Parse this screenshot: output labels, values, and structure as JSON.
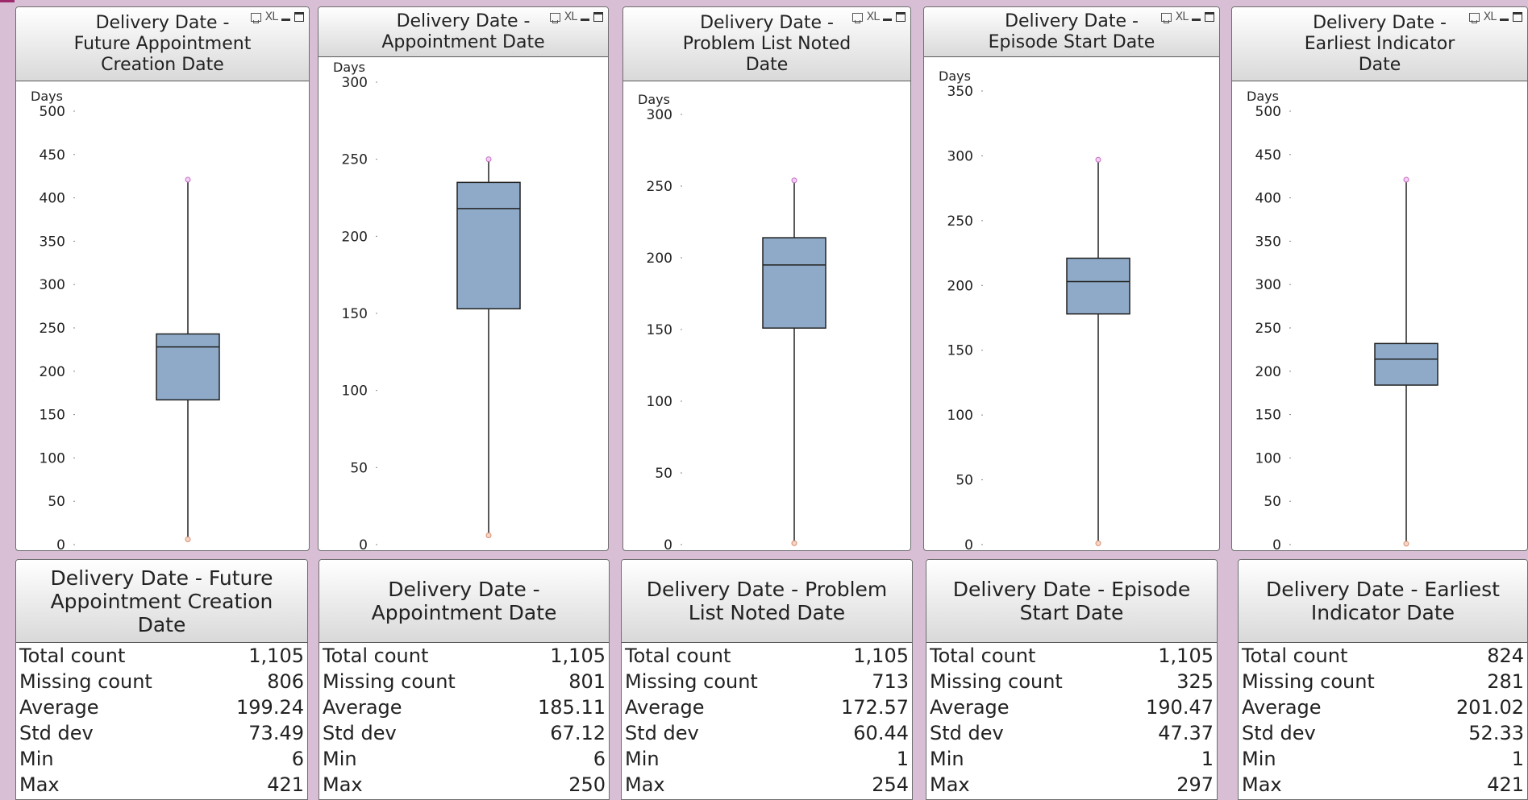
{
  "charts": [
    {
      "id": "c1",
      "caption": "Delivery Date - Future Appointment Creation Date",
      "caption_lines": [
        "Delivery Date -",
        "Future Appointment",
        "Creation Date"
      ],
      "icons": [
        "print-icon",
        "xl-icon",
        "minimize-icon",
        "maximize-icon"
      ],
      "xl_label": "XL",
      "chart_data": {
        "type": "boxplot",
        "ylabel": "Days",
        "ylim": [
          0,
          500
        ],
        "yticks": [
          0,
          50,
          100,
          150,
          200,
          250,
          300,
          350,
          400,
          450,
          500
        ],
        "box": {
          "min": 6,
          "q1": 167,
          "median": 228,
          "q3": 243,
          "max": 421
        },
        "box_color": "#8eaac8"
      }
    },
    {
      "id": "c2",
      "caption": "Delivery Date - Appointment Date",
      "caption_lines": [
        "Delivery Date -",
        "Appointment Date"
      ],
      "icons": [
        "print-icon",
        "xl-icon",
        "minimize-icon",
        "maximize-icon"
      ],
      "xl_label": "XL",
      "chart_data": {
        "type": "boxplot",
        "ylabel": "Days",
        "ylim": [
          0,
          300
        ],
        "yticks": [
          0,
          50,
          100,
          150,
          200,
          250,
          300
        ],
        "box": {
          "min": 6,
          "q1": 153,
          "median": 218,
          "q3": 235,
          "max": 250
        },
        "box_color": "#8eaac8"
      }
    },
    {
      "id": "c3",
      "caption": "Delivery Date - Problem List Noted Date",
      "caption_lines": [
        "Delivery Date -",
        "Problem List Noted",
        "Date"
      ],
      "icons": [
        "print-icon",
        "xl-icon",
        "minimize-icon",
        "maximize-icon"
      ],
      "xl_label": "XL",
      "chart_data": {
        "type": "boxplot",
        "ylabel": "Days",
        "ylim": [
          0,
          300
        ],
        "yticks": [
          0,
          50,
          100,
          150,
          200,
          250,
          300
        ],
        "box": {
          "min": 1,
          "q1": 151,
          "median": 195,
          "q3": 214,
          "max": 254
        },
        "box_color": "#8eaac8"
      }
    },
    {
      "id": "c4",
      "caption": "Delivery Date - Episode Start Date",
      "caption_lines": [
        "Delivery Date -",
        "Episode Start Date"
      ],
      "icons": [
        "print-icon",
        "xl-icon",
        "minimize-icon",
        "maximize-icon"
      ],
      "xl_label": "XL",
      "chart_data": {
        "type": "boxplot",
        "ylabel": "Days",
        "ylim": [
          0,
          350
        ],
        "yticks": [
          0,
          50,
          100,
          150,
          200,
          250,
          300,
          350
        ],
        "box": {
          "min": 1,
          "q1": 178,
          "median": 203,
          "q3": 221,
          "max": 297
        },
        "box_color": "#8eaac8"
      }
    },
    {
      "id": "c5",
      "caption": "Delivery Date - Earliest Indicator Date",
      "caption_lines": [
        "Delivery Date -",
        "Earliest Indicator",
        "Date"
      ],
      "icons": [
        "print-icon",
        "xl-icon",
        "minimize-icon",
        "maximize-icon"
      ],
      "xl_label": "XL",
      "chart_data": {
        "type": "boxplot",
        "ylabel": "Days",
        "ylim": [
          0,
          500
        ],
        "yticks": [
          0,
          50,
          100,
          150,
          200,
          250,
          300,
          350,
          400,
          450,
          500
        ],
        "box": {
          "min": 1,
          "q1": 184,
          "median": 214,
          "q3": 232,
          "max": 421
        },
        "box_color": "#8eaac8"
      }
    }
  ],
  "stats": [
    {
      "caption_lines": [
        "Delivery Date - Future",
        "Appointment Creation",
        "Date"
      ],
      "rows": [
        {
          "label": "Total count",
          "value": "1,105"
        },
        {
          "label": "Missing count",
          "value": "806"
        },
        {
          "label": "Average",
          "value": "199.24"
        },
        {
          "label": "Std dev",
          "value": "73.49"
        },
        {
          "label": "Min",
          "value": "6"
        },
        {
          "label": "Max",
          "value": "421"
        }
      ]
    },
    {
      "caption_lines": [
        "Delivery Date -",
        "Appointment Date"
      ],
      "rows": [
        {
          "label": "Total count",
          "value": "1,105"
        },
        {
          "label": "Missing count",
          "value": "801"
        },
        {
          "label": "Average",
          "value": "185.11"
        },
        {
          "label": "Std dev",
          "value": "67.12"
        },
        {
          "label": "Min",
          "value": "6"
        },
        {
          "label": "Max",
          "value": "250"
        }
      ]
    },
    {
      "caption_lines": [
        "Delivery Date - Problem",
        "List Noted Date"
      ],
      "rows": [
        {
          "label": "Total count",
          "value": "1,105"
        },
        {
          "label": "Missing count",
          "value": "713"
        },
        {
          "label": "Average",
          "value": "172.57"
        },
        {
          "label": "Std dev",
          "value": "60.44"
        },
        {
          "label": "Min",
          "value": "1"
        },
        {
          "label": "Max",
          "value": "254"
        }
      ]
    },
    {
      "caption_lines": [
        "Delivery Date - Episode",
        "Start Date"
      ],
      "rows": [
        {
          "label": "Total count",
          "value": "1,105"
        },
        {
          "label": "Missing count",
          "value": "325"
        },
        {
          "label": "Average",
          "value": "190.47"
        },
        {
          "label": "Std dev",
          "value": "47.37"
        },
        {
          "label": "Min",
          "value": "1"
        },
        {
          "label": "Max",
          "value": "297"
        }
      ]
    },
    {
      "caption_lines": [
        "Delivery Date - Earliest",
        "Indicator Date"
      ],
      "rows": [
        {
          "label": "Total count",
          "value": "824"
        },
        {
          "label": "Missing count",
          "value": "281"
        },
        {
          "label": "Average",
          "value": "201.02"
        },
        {
          "label": "Std dev",
          "value": "52.33"
        },
        {
          "label": "Min",
          "value": "1"
        },
        {
          "label": "Max",
          "value": "421"
        }
      ]
    }
  ]
}
